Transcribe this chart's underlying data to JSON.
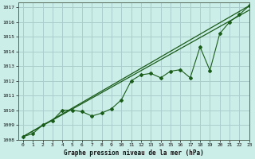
{
  "title": "Graphe pression niveau de la mer (hPa)",
  "bg_color": "#cceee8",
  "grid_color": "#aacccc",
  "line_color": "#1a5c1a",
  "xlim": [
    -0.5,
    23
  ],
  "ylim": [
    1008,
    1017.3
  ],
  "xticks": [
    0,
    1,
    2,
    3,
    4,
    5,
    6,
    7,
    8,
    9,
    10,
    11,
    12,
    13,
    14,
    15,
    16,
    17,
    18,
    19,
    20,
    21,
    22,
    23
  ],
  "yticks": [
    1008,
    1009,
    1010,
    1011,
    1012,
    1013,
    1014,
    1015,
    1016,
    1017
  ],
  "line1_x": [
    0,
    23
  ],
  "line1_y": [
    1008.2,
    1017.1
  ],
  "line2_x": [
    0,
    23
  ],
  "line2_y": [
    1008.2,
    1016.8
  ],
  "series_x": [
    0,
    1,
    2,
    3,
    4,
    5,
    6,
    7,
    8,
    9,
    10,
    11,
    12,
    13,
    14,
    15,
    16,
    17,
    18,
    19,
    20,
    21,
    22,
    23
  ],
  "series_y": [
    1008.2,
    1008.4,
    1009.0,
    1009.3,
    1010.0,
    1010.0,
    1009.9,
    1009.6,
    1009.8,
    1010.1,
    1010.7,
    1012.0,
    1012.4,
    1012.5,
    1012.2,
    1012.65,
    1012.75,
    1012.2,
    1014.3,
    1012.7,
    1015.2,
    1016.0,
    1016.5,
    1017.1
  ]
}
